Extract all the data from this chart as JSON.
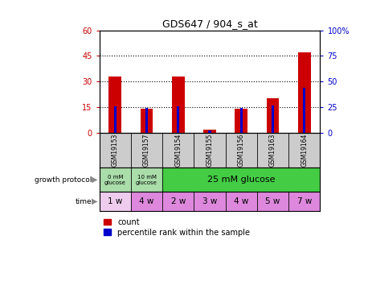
{
  "title": "GDS647 / 904_s_at",
  "samples": [
    "GSM19153",
    "GSM19157",
    "GSM19154",
    "GSM19155",
    "GSM19156",
    "GSM19163",
    "GSM19164"
  ],
  "counts": [
    33,
    14,
    33,
    2,
    14,
    20,
    47
  ],
  "percentile_ranks": [
    26,
    24,
    26,
    2,
    24,
    27,
    44
  ],
  "left_ylim": [
    0,
    60
  ],
  "right_ylim": [
    0,
    100
  ],
  "left_yticks": [
    0,
    15,
    30,
    45,
    60
  ],
  "right_yticks": [
    0,
    25,
    50,
    75,
    100
  ],
  "right_yticklabels": [
    "0",
    "25",
    "50",
    "75",
    "100%"
  ],
  "bar_color": "#cc0000",
  "pct_color": "#0000cc",
  "time_labels": [
    "1 w",
    "4 w",
    "2 w",
    "3 w",
    "4 w",
    "5 w",
    "7 w"
  ],
  "time_colors": [
    "#eeccee",
    "#dd88dd",
    "#dd88dd",
    "#dd88dd",
    "#dd88dd",
    "#dd88dd",
    "#dd88dd"
  ],
  "sample_bg_color": "#cccccc",
  "protocol_colors": [
    "#aaddaa",
    "#aaddaa",
    "#44cc44"
  ],
  "legend_count_label": "count",
  "legend_pct_label": "percentile rank within the sample"
}
